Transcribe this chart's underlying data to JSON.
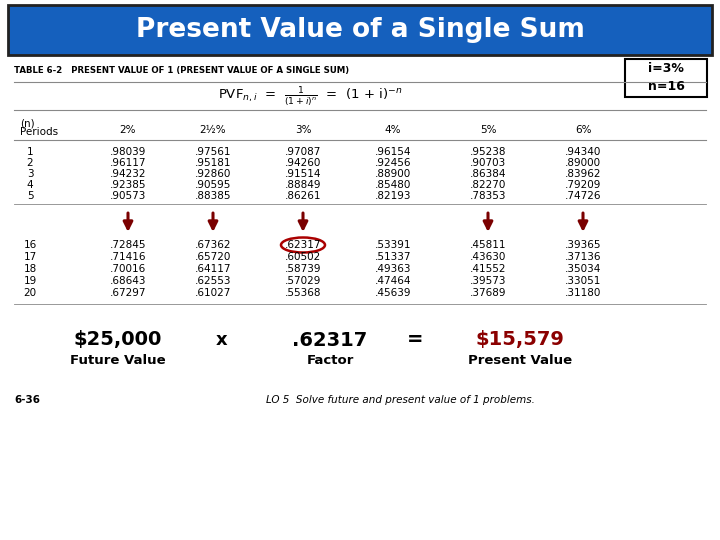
{
  "title": "Present Value of a Single Sum",
  "title_bg": "#1560BD",
  "title_color": "#FFFFFF",
  "table_header": "TABLE 6-2   PRESENT VALUE OF 1 (PRESENT VALUE OF A SINGLE SUM)",
  "i_n_box": "i=3%\nn=16",
  "col_headers": [
    "(n)\nPeriods",
    "2%",
    "2½%",
    "3%",
    "4%",
    "5%",
    "6%"
  ],
  "rows_top": [
    [
      1,
      ".98039",
      ".97561",
      ".97087",
      ".96154",
      ".95238",
      ".94340"
    ],
    [
      2,
      ".96117",
      ".95181",
      ".94260",
      ".92456",
      ".90703",
      ".89000"
    ],
    [
      3,
      ".94232",
      ".92860",
      ".91514",
      ".88900",
      ".86384",
      ".83962"
    ],
    [
      4,
      ".92385",
      ".90595",
      ".88849",
      ".85480",
      ".82270",
      ".79209"
    ],
    [
      5,
      ".90573",
      ".88385",
      ".86261",
      ".82193",
      ".78353",
      ".74726"
    ]
  ],
  "rows_bottom": [
    [
      16,
      ".72845",
      ".67362",
      ".62317",
      ".53391",
      ".45811",
      ".39365"
    ],
    [
      17,
      ".71416",
      ".65720",
      ".60502",
      ".51337",
      ".43630",
      ".37136"
    ],
    [
      18,
      ".70016",
      ".64117",
      ".58739",
      ".49363",
      ".41552",
      ".35034"
    ],
    [
      19,
      ".68643",
      ".62553",
      ".57029",
      ".47464",
      ".39573",
      ".33051"
    ],
    [
      20,
      ".67297",
      ".61027",
      ".55368",
      ".45639",
      ".37689",
      ".31180"
    ]
  ],
  "arrow_col_indices": [
    1,
    2,
    3,
    5,
    6
  ],
  "circled_col": 3,
  "equation_left": "$25,000",
  "equation_x": "x",
  "equation_factor": ".62317",
  "equation_eq": "=",
  "equation_result": "$15,579",
  "equation_result_color": "#8B0000",
  "label_left": "Future Value",
  "label_factor": "Factor",
  "label_result": "Present Value",
  "bottom_left": "6-36",
  "bottom_right": "LO 5  Solve future and present value of 1 problems.",
  "arrow_color": "#7B0000",
  "bg_color": "#FFFFFF",
  "line_color": "#888888"
}
